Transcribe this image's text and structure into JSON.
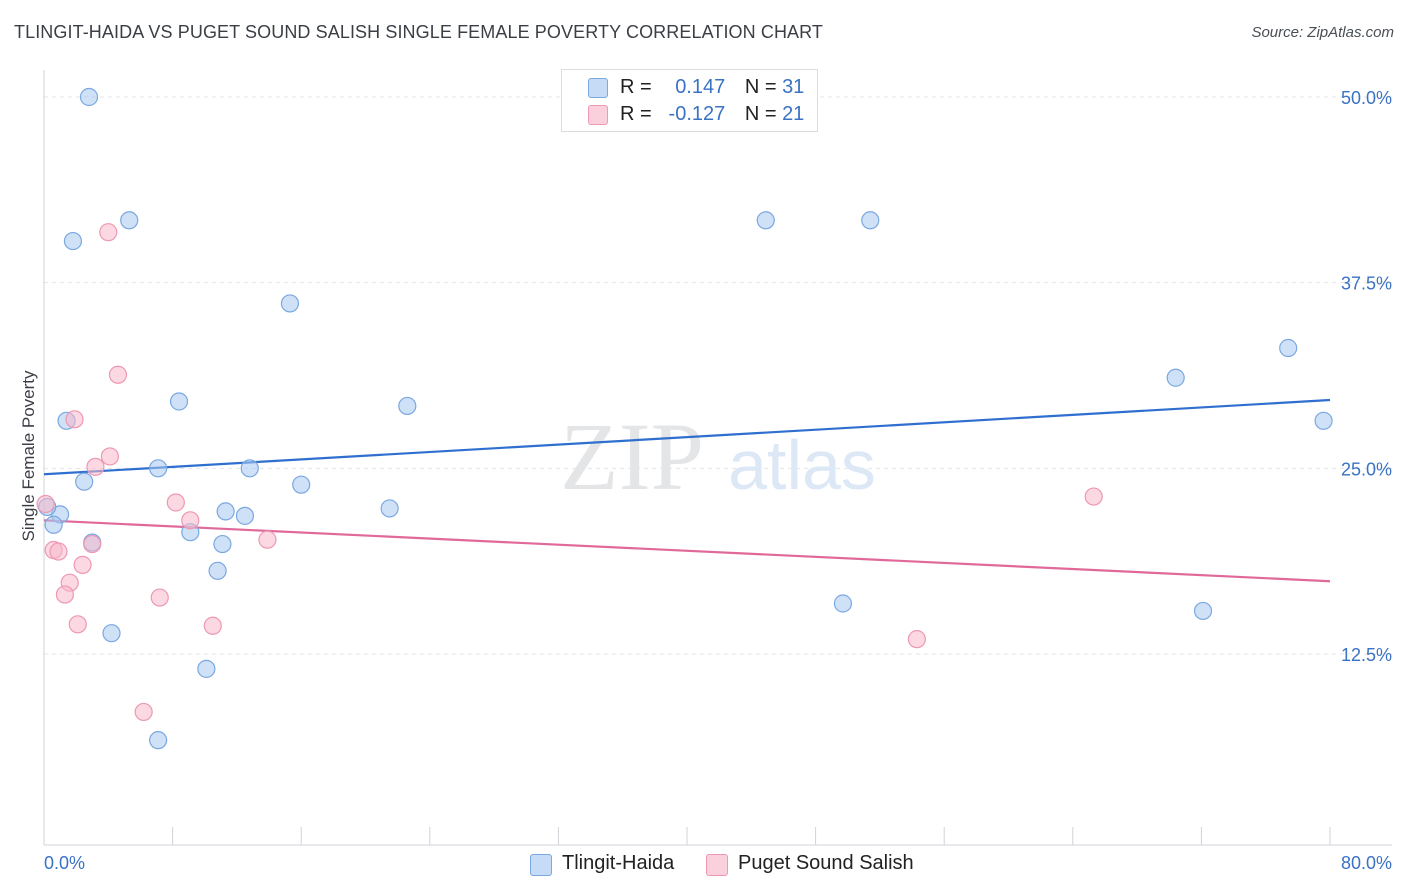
{
  "header": {
    "title": "TLINGIT-HAIDA VS PUGET SOUND SALISH SINGLE FEMALE POVERTY CORRELATION CHART",
    "source": "Source: ZipAtlas.com"
  },
  "legend_top": {
    "rows": [
      {
        "r_label": "R =",
        "r_value": "0.147",
        "n_label": "N =",
        "n_value": "31",
        "color": "#a8c8f0"
      },
      {
        "r_label": "R =",
        "r_value": "-0.127",
        "n_label": "N =",
        "n_value": "21",
        "color": "#f7b8cb"
      }
    ]
  },
  "legend_bottom": {
    "items": [
      {
        "label": "Tlingit-Haida",
        "color": "#a8c8f0"
      },
      {
        "label": "Puget Sound Salish",
        "color": "#f7b8cb"
      }
    ]
  },
  "watermark": {
    "zip": "ZIP",
    "atlas": "atlas"
  },
  "chart_data": {
    "type": "scatter",
    "title": "TLINGIT-HAIDA VS PUGET SOUND SALISH SINGLE FEMALE POVERTY CORRELATION CHART",
    "ylabel": "Single Female Poverty",
    "xlabel": "",
    "xlim": [
      0,
      80
    ],
    "ylim": [
      0,
      52
    ],
    "x_tick_labels": [
      "0.0%",
      "80.0%"
    ],
    "y_ticks": [
      {
        "value": 50,
        "label": "50.0%"
      },
      {
        "value": 37.5,
        "label": "37.5%"
      },
      {
        "value": 25,
        "label": "25.0%"
      },
      {
        "value": 12.5,
        "label": "12.5%"
      }
    ],
    "grid": true,
    "series": [
      {
        "name": "Tlingit-Haida",
        "color": "#a8c8f0",
        "stroke": "#7aa8e0",
        "trend": {
          "x": [
            0,
            80
          ],
          "y": [
            24.6,
            29.6
          ],
          "color": "#2f6fcf"
        },
        "points": [
          {
            "x": 2.8,
            "y": 50.0
          },
          {
            "x": 5.3,
            "y": 41.7
          },
          {
            "x": 1.8,
            "y": 40.3
          },
          {
            "x": 15.3,
            "y": 36.1
          },
          {
            "x": 8.4,
            "y": 29.5
          },
          {
            "x": 22.6,
            "y": 29.2
          },
          {
            "x": 1.4,
            "y": 28.2
          },
          {
            "x": 7.1,
            "y": 25.0
          },
          {
            "x": 12.8,
            "y": 25.0
          },
          {
            "x": 2.5,
            "y": 24.1
          },
          {
            "x": 16.0,
            "y": 23.9
          },
          {
            "x": 21.5,
            "y": 22.3
          },
          {
            "x": 11.3,
            "y": 22.1
          },
          {
            "x": 12.5,
            "y": 21.8
          },
          {
            "x": 1.0,
            "y": 21.9
          },
          {
            "x": 0.6,
            "y": 21.2
          },
          {
            "x": 9.1,
            "y": 20.7
          },
          {
            "x": 3.0,
            "y": 20.0
          },
          {
            "x": 11.1,
            "y": 19.9
          },
          {
            "x": 10.8,
            "y": 18.1
          },
          {
            "x": 4.2,
            "y": 13.9
          },
          {
            "x": 10.1,
            "y": 11.5
          },
          {
            "x": 7.1,
            "y": 6.7
          },
          {
            "x": 44.9,
            "y": 41.7
          },
          {
            "x": 51.4,
            "y": 41.7
          },
          {
            "x": 77.4,
            "y": 33.1
          },
          {
            "x": 70.4,
            "y": 31.1
          },
          {
            "x": 79.6,
            "y": 28.2
          },
          {
            "x": 49.7,
            "y": 15.9
          },
          {
            "x": 72.1,
            "y": 15.4
          },
          {
            "x": 0.2,
            "y": 22.4
          }
        ]
      },
      {
        "name": "Puget Sound Salish",
        "color": "#f7b8cb",
        "stroke": "#ee98b2",
        "trend": {
          "x": [
            0,
            80
          ],
          "y": [
            21.5,
            17.4
          ],
          "color": "#e0699a"
        },
        "points": [
          {
            "x": 4.0,
            "y": 40.9
          },
          {
            "x": 4.6,
            "y": 31.3
          },
          {
            "x": 1.9,
            "y": 28.3
          },
          {
            "x": 4.1,
            "y": 25.8
          },
          {
            "x": 3.2,
            "y": 25.1
          },
          {
            "x": 8.2,
            "y": 22.7
          },
          {
            "x": 9.1,
            "y": 21.5
          },
          {
            "x": 0.1,
            "y": 22.6
          },
          {
            "x": 0.6,
            "y": 19.5
          },
          {
            "x": 0.9,
            "y": 19.4
          },
          {
            "x": 3.0,
            "y": 19.9
          },
          {
            "x": 2.4,
            "y": 18.5
          },
          {
            "x": 13.9,
            "y": 20.2
          },
          {
            "x": 1.6,
            "y": 17.3
          },
          {
            "x": 1.3,
            "y": 16.5
          },
          {
            "x": 7.2,
            "y": 16.3
          },
          {
            "x": 2.1,
            "y": 14.5
          },
          {
            "x": 10.5,
            "y": 14.4
          },
          {
            "x": 6.2,
            "y": 8.6
          },
          {
            "x": 65.3,
            "y": 23.1
          },
          {
            "x": 54.3,
            "y": 13.5
          }
        ]
      }
    ]
  }
}
